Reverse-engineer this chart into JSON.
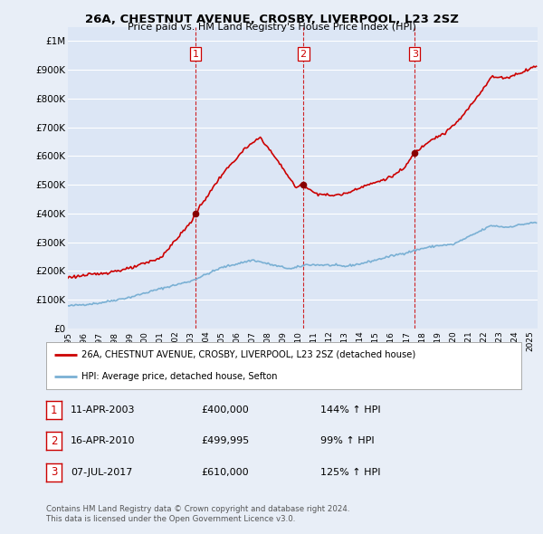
{
  "title": "26A, CHESTNUT AVENUE, CROSBY, LIVERPOOL, L23 2SZ",
  "subtitle": "Price paid vs. HM Land Registry's House Price Index (HPI)",
  "ylabel_ticks": [
    "£0",
    "£100K",
    "£200K",
    "£300K",
    "£400K",
    "£500K",
    "£600K",
    "£700K",
    "£800K",
    "£900K",
    "£1M"
  ],
  "ytick_vals": [
    0,
    100000,
    200000,
    300000,
    400000,
    500000,
    600000,
    700000,
    800000,
    900000,
    1000000
  ],
  "ylim": [
    0,
    1050000
  ],
  "xlim_start": 1995.0,
  "xlim_end": 2025.5,
  "background_color": "#e8eef7",
  "plot_bg_color": "#dce6f5",
  "grid_color": "#ffffff",
  "sale_color": "#cc0000",
  "hpi_color": "#7ab0d4",
  "sale_dot_color": "#880000",
  "dashed_line_color": "#cc0000",
  "transactions": [
    {
      "num": 1,
      "date_label": "11-APR-2003",
      "date_x": 2003.28,
      "price": 400000,
      "pct": "144%",
      "arrow": "↑"
    },
    {
      "num": 2,
      "date_label": "16-APR-2010",
      "date_x": 2010.29,
      "price": 499995,
      "pct": "99%",
      "arrow": "↑"
    },
    {
      "num": 3,
      "date_label": "07-JUL-2017",
      "date_x": 2017.52,
      "price": 610000,
      "pct": "125%",
      "arrow": "↑"
    }
  ],
  "legend_line1": "26A, CHESTNUT AVENUE, CROSBY, LIVERPOOL, L23 2SZ (detached house)",
  "legend_line2": "HPI: Average price, detached house, Sefton",
  "footnote1": "Contains HM Land Registry data © Crown copyright and database right 2024.",
  "footnote2": "This data is licensed under the Open Government Licence v3.0.",
  "table_rows": [
    {
      "num": 1,
      "date": "11-APR-2003",
      "price": "£400,000",
      "pct": "144% ↑ HPI"
    },
    {
      "num": 2,
      "date": "16-APR-2010",
      "price": "£499,995",
      "pct": "99% ↑ HPI"
    },
    {
      "num": 3,
      "date": "07-JUL-2017",
      "price": "£610,000",
      "pct": "125% ↑ HPI"
    }
  ]
}
